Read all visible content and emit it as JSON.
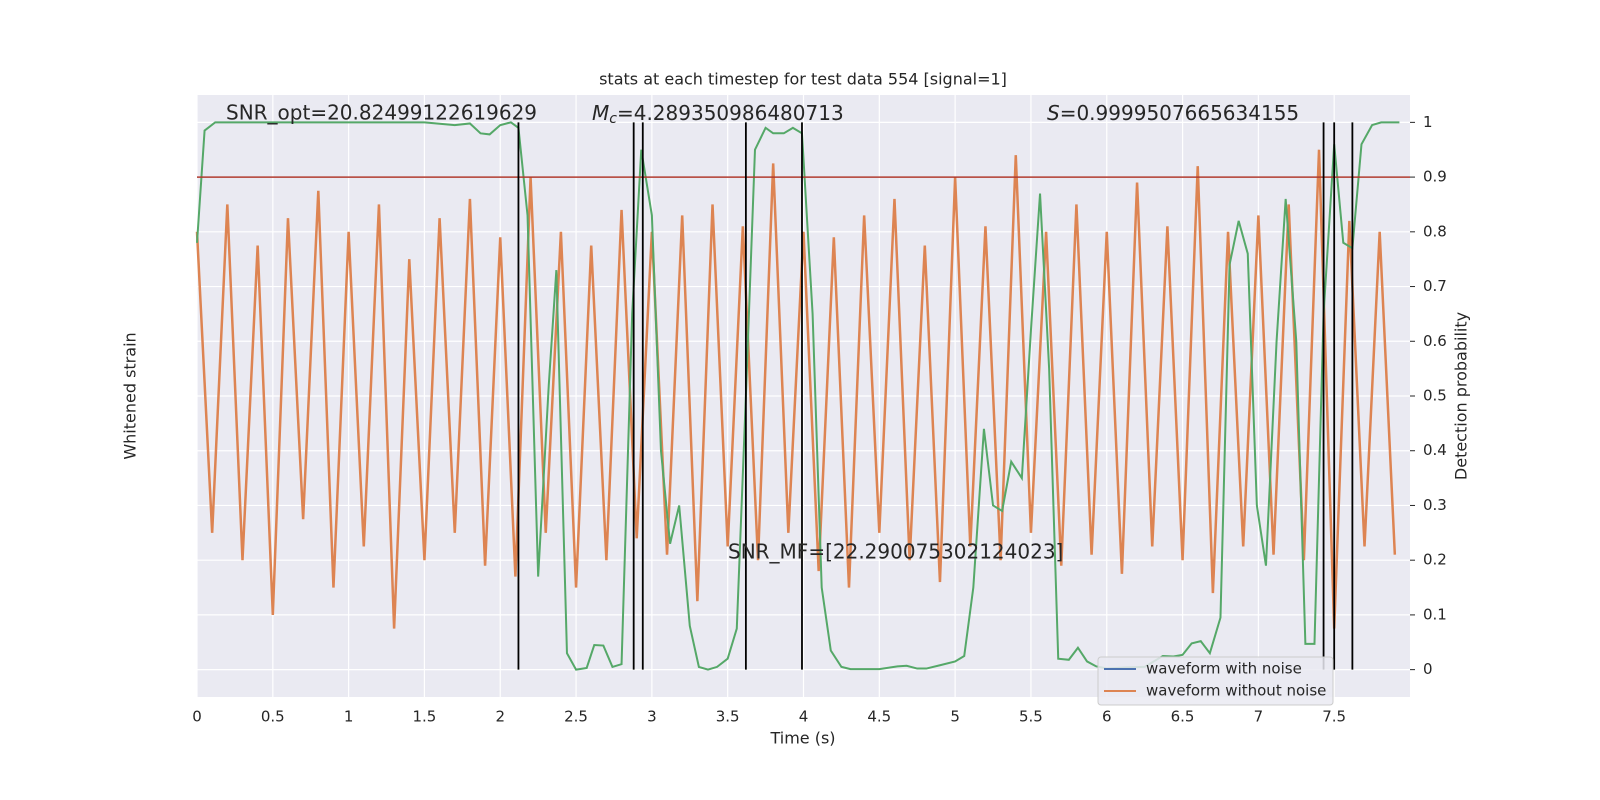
{
  "chart_data": {
    "type": "line",
    "title": "stats at each timestep for test data 554 [signal=1]",
    "xlabel": "Time (s)",
    "ylabel": "Whitened strain",
    "y2label": "Detection probability",
    "xlim": [
      0,
      8
    ],
    "xticks": [
      0.0,
      0.5,
      1.0,
      1.5,
      2.0,
      2.5,
      3.0,
      3.5,
      4.0,
      4.5,
      5.0,
      5.5,
      6.0,
      6.5,
      7.0,
      7.5
    ],
    "ylim": [
      -1.1,
      1.1
    ],
    "y2lim": [
      -0.05,
      1.05
    ],
    "y2ticks": [
      0.0,
      0.1,
      0.2,
      0.3,
      0.4,
      0.5,
      0.6,
      0.7,
      0.8,
      0.9,
      1.0
    ],
    "grid": true,
    "legend": "lower right",
    "series": [
      {
        "name": "waveform with noise",
        "color": "#4c72b0",
        "x": [],
        "values": []
      },
      {
        "name": "waveform without noise",
        "color": "#dd8452",
        "x": [
          0,
          0.1,
          0.2,
          0.3,
          0.4,
          0.5,
          0.6,
          0.7,
          0.8,
          0.9,
          1,
          1.1,
          1.2,
          1.3,
          1.4,
          1.5,
          1.6,
          1.7,
          1.8,
          1.9,
          2,
          2.1,
          2.2,
          2.3,
          2.4,
          2.5,
          2.6,
          2.7,
          2.8,
          2.9,
          3,
          3.1,
          3.2,
          3.3,
          3.4,
          3.5,
          3.6,
          3.7,
          3.8,
          3.9,
          4,
          4.1,
          4.2,
          4.3,
          4.4,
          4.5,
          4.6,
          4.7,
          4.8,
          4.9,
          5,
          5.1,
          5.2,
          5.3,
          5.4,
          5.5,
          5.6,
          5.7,
          5.8,
          5.9,
          6,
          6.1,
          6.2,
          6.3,
          6.4,
          6.5,
          6.6,
          6.7,
          6.8,
          6.9,
          7,
          7.1,
          7.2,
          7.3,
          7.4,
          7.5,
          7.6,
          7.7,
          7.8,
          7.9
        ],
        "values": [
          0.6,
          -0.5,
          0.7,
          -0.6,
          0.55,
          -0.8,
          0.65,
          -0.45,
          0.75,
          -0.7,
          0.6,
          -0.55,
          0.7,
          -0.85,
          0.5,
          -0.6,
          0.65,
          -0.5,
          0.72,
          -0.62,
          0.58,
          -0.66,
          0.8,
          -0.5,
          0.6,
          -0.7,
          0.55,
          -0.6,
          0.68,
          -0.52,
          0.6,
          -0.58,
          0.66,
          -0.75,
          0.7,
          -0.55,
          0.62,
          -0.6,
          0.85,
          -0.5,
          0.6,
          -0.64,
          0.58,
          -0.7,
          0.66,
          -0.5,
          0.72,
          -0.6,
          0.55,
          -0.68,
          0.8,
          -0.55,
          0.62,
          -0.6,
          0.88,
          -0.5,
          0.6,
          -0.62,
          0.7,
          -0.58,
          0.6,
          -0.65,
          0.78,
          -0.55,
          0.62,
          -0.6,
          0.84,
          -0.72,
          0.6,
          -0.55,
          0.66,
          -0.58,
          0.7,
          -0.6,
          0.9,
          -0.85,
          0.64,
          -0.55,
          0.6,
          -0.58
        ]
      },
      {
        "name": "detection probability",
        "color": "#55a868",
        "axis": "y2",
        "x": [
          0.0,
          0.05,
          0.12,
          0.5,
          1.0,
          1.5,
          1.7,
          1.8,
          1.87,
          1.93,
          2.0,
          2.07,
          2.12,
          2.18,
          2.25,
          2.32,
          2.37,
          2.44,
          2.5,
          2.57,
          2.62,
          2.68,
          2.74,
          2.8,
          2.87,
          2.93,
          3.0,
          3.06,
          3.12,
          3.18,
          3.25,
          3.31,
          3.37,
          3.43,
          3.5,
          3.56,
          3.62,
          3.68,
          3.75,
          3.8,
          3.87,
          3.93,
          3.99,
          4.06,
          4.12,
          4.18,
          4.25,
          4.31,
          4.5,
          4.62,
          4.68,
          4.75,
          4.81,
          4.9,
          5.0,
          5.06,
          5.12,
          5.19,
          5.25,
          5.31,
          5.37,
          5.44,
          5.5,
          5.56,
          5.62,
          5.68,
          5.75,
          5.81,
          5.87,
          5.93,
          6.0,
          6.12,
          6.25,
          6.37,
          6.44,
          6.5,
          6.56,
          6.62,
          6.68,
          6.75,
          6.81,
          6.87,
          6.93,
          6.99,
          7.05,
          7.12,
          7.18,
          7.25,
          7.31,
          7.37,
          7.43,
          7.5,
          7.56,
          7.62,
          7.68,
          7.75,
          7.81,
          7.93
        ],
        "values": [
          0.78,
          0.985,
          1.0,
          1.0,
          1.0,
          1.0,
          0.995,
          0.998,
          0.98,
          0.978,
          0.995,
          1.0,
          0.99,
          0.83,
          0.17,
          0.52,
          0.73,
          0.03,
          0.0,
          0.003,
          0.045,
          0.044,
          0.005,
          0.01,
          0.65,
          0.95,
          0.83,
          0.4,
          0.23,
          0.3,
          0.08,
          0.005,
          0.0,
          0.005,
          0.02,
          0.075,
          0.5,
          0.95,
          0.99,
          0.98,
          0.98,
          0.99,
          0.98,
          0.65,
          0.15,
          0.035,
          0.005,
          0.001,
          0.001,
          0.006,
          0.007,
          0.002,
          0.002,
          0.008,
          0.015,
          0.025,
          0.15,
          0.44,
          0.3,
          0.29,
          0.38,
          0.35,
          0.62,
          0.87,
          0.55,
          0.02,
          0.018,
          0.04,
          0.015,
          0.006,
          0.002,
          0.004,
          0.005,
          0.025,
          0.024,
          0.027,
          0.048,
          0.052,
          0.03,
          0.095,
          0.74,
          0.82,
          0.76,
          0.3,
          0.19,
          0.6,
          0.86,
          0.6,
          0.047,
          0.047,
          0.65,
          0.96,
          0.78,
          0.77,
          0.96,
          0.995,
          1.0,
          1.0
        ]
      }
    ],
    "threshold": 0.9,
    "threshold_color": "#b03a2e",
    "vlines": [
      2.12,
      2.88,
      2.94,
      3.62,
      3.99,
      7.43,
      7.5,
      7.62
    ],
    "vline_color": "#000000",
    "annotations": {
      "snr_opt": "SNR_opt=20.82499122619629",
      "mc_symbol": "M",
      "mc_subscript": "c",
      "mc_text": "=4.289350986480713",
      "s_symbol": "S",
      "s_text": "=0.9999507665634155",
      "snr_mf": "SNR_MF=[22.290075302124023]"
    }
  }
}
